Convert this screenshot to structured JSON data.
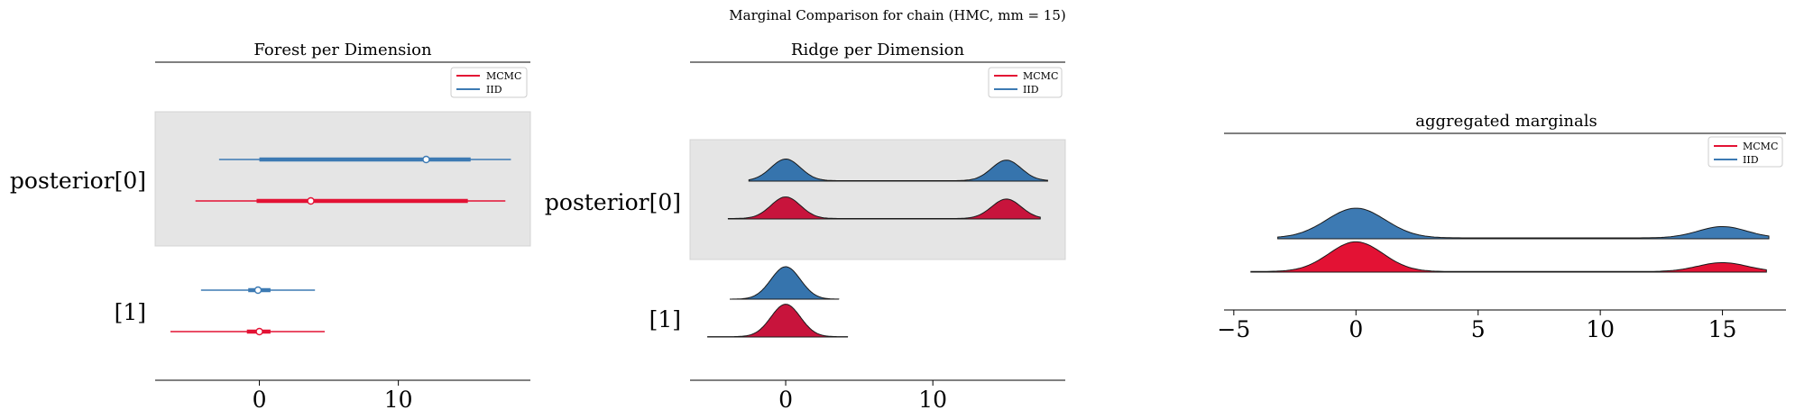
{
  "figure": {
    "suptitle": "Marginal Comparison for chain (HMC, mm = 15)"
  },
  "colors": {
    "mcmc": "#e31234",
    "mcmc_ridge": "#c8143c",
    "iid": "#3d7ab3",
    "iid_ridge": "#3674ad",
    "band": "#e5e5e5"
  },
  "chart_data": [
    {
      "type": "forest",
      "title": "Forest per Dimension",
      "legend": [
        "MCMC",
        "IID"
      ],
      "legend_placement": "top-right",
      "rows": [
        "posterior[0]",
        "[1]"
      ],
      "xticks": [
        0,
        10
      ],
      "xlim": [
        -7.5,
        19.5
      ],
      "series": [
        {
          "name": "IID",
          "data": [
            {
              "row": "posterior[0]",
              "hdi_low": -2.9,
              "iqr_low": 0.0,
              "median": 12.0,
              "iqr_high": 15.2,
              "hdi_high": 18.1
            },
            {
              "row": "[1]",
              "hdi_low": -4.2,
              "iqr_low": -0.8,
              "median": -0.1,
              "iqr_high": 0.8,
              "hdi_high": 4.0
            }
          ]
        },
        {
          "name": "MCMC",
          "data": [
            {
              "row": "posterior[0]",
              "hdi_low": -4.6,
              "iqr_low": -0.2,
              "median": 3.7,
              "iqr_high": 15.0,
              "hdi_high": 17.7
            },
            {
              "row": "[1]",
              "hdi_low": -6.4,
              "iqr_low": -0.9,
              "median": 0.0,
              "iqr_high": 0.8,
              "hdi_high": 4.7
            }
          ]
        }
      ]
    },
    {
      "type": "ridge",
      "title": "Ridge per Dimension",
      "legend": [
        "MCMC",
        "IID"
      ],
      "legend_placement": "top-right",
      "rows": [
        "posterior[0]",
        "[1]"
      ],
      "xticks": [
        0,
        10
      ],
      "xlim": [
        -6.5,
        19
      ],
      "series": [
        {
          "name": "IID",
          "data": [
            {
              "row": "posterior[0]",
              "range": [
                -2.5,
                17.8
              ],
              "modes": [
                {
                  "mu": 0.0,
                  "sd": 1.0,
                  "w": 1.0
                },
                {
                  "mu": 15.0,
                  "sd": 1.0,
                  "w": 0.95
                }
              ],
              "base": 0.02
            },
            {
              "row": "[1]",
              "range": [
                -3.8,
                3.6
              ],
              "modes": [
                {
                  "mu": 0.0,
                  "sd": 1.0,
                  "w": 1.0
                }
              ],
              "base": 0.0
            }
          ]
        },
        {
          "name": "MCMC",
          "data": [
            {
              "row": "posterior[0]",
              "range": [
                -3.9,
                17.3
              ],
              "modes": [
                {
                  "mu": 0.0,
                  "sd": 1.0,
                  "w": 1.0
                },
                {
                  "mu": 15.0,
                  "sd": 1.0,
                  "w": 0.9
                }
              ],
              "base": 0.02
            },
            {
              "row": "[1]",
              "range": [
                -5.3,
                4.2
              ],
              "modes": [
                {
                  "mu": 0.0,
                  "sd": 1.0,
                  "w": 1.0
                }
              ],
              "base": 0.01
            }
          ]
        }
      ]
    },
    {
      "type": "ridge",
      "title": "aggregated marginals",
      "legend": [
        "MCMC",
        "IID"
      ],
      "legend_placement": "top-right",
      "xticks": [
        -5,
        0,
        5,
        10,
        15
      ],
      "xlim": [
        -5.4,
        17.6
      ],
      "series": [
        {
          "name": "IID",
          "range": [
            -3.2,
            16.9
          ],
          "modes": [
            {
              "mu": 0.0,
              "sd": 1.2,
              "w": 1.0
            },
            {
              "mu": 15.0,
              "sd": 1.0,
              "w": 0.38
            }
          ],
          "base": 0.03
        },
        {
          "name": "MCMC",
          "range": [
            -4.3,
            16.8
          ],
          "modes": [
            {
              "mu": 0.0,
              "sd": 1.1,
              "w": 1.0
            },
            {
              "mu": 15.0,
              "sd": 1.0,
              "w": 0.3
            }
          ],
          "base": 0.02
        }
      ]
    }
  ]
}
